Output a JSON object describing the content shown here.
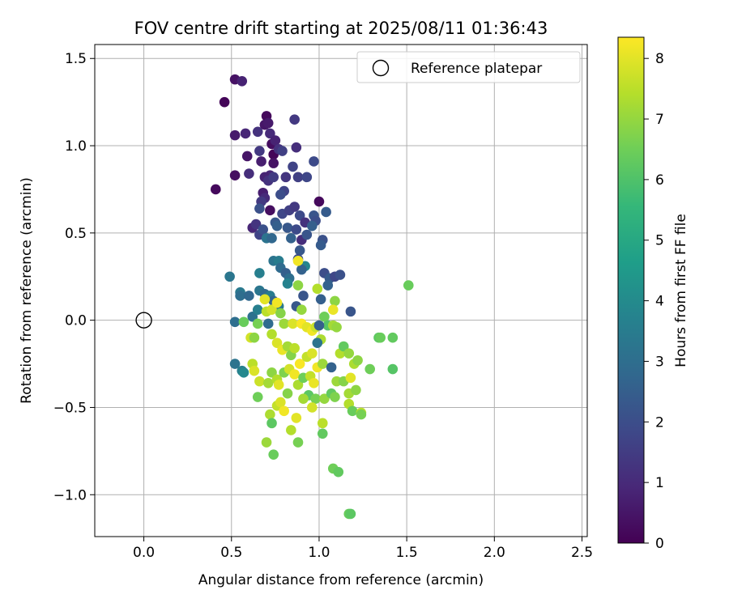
{
  "chart_data": {
    "type": "scatter",
    "title": "FOV centre drift starting at 2025/08/11 01:36:43",
    "xlabel": "Angular distance from reference (arcmin)",
    "ylabel": "Rotation from reference (arcmin)",
    "xlim": [
      -0.28,
      2.53
    ],
    "ylim": [
      -1.24,
      1.58
    ],
    "xticks": [
      0.0,
      0.5,
      1.0,
      1.5,
      2.0,
      2.5
    ],
    "yticks": [
      -1.0,
      -0.5,
      0.0,
      0.5,
      1.0,
      1.5
    ],
    "xtick_labels": [
      "0.0",
      "0.5",
      "1.0",
      "1.5",
      "2.0",
      "2.5"
    ],
    "ytick_labels": [
      "−1.0",
      "−0.5",
      "0.0",
      "0.5",
      "1.0",
      "1.5"
    ],
    "grid": true,
    "legend": {
      "position": "top-right",
      "entries": [
        "Reference platepar"
      ]
    },
    "reference_point": {
      "x": 0.0,
      "y": 0.0,
      "marker": "open-circle",
      "color": "#000000"
    },
    "colorbar": {
      "label": "Hours from first FF file",
      "range": [
        0,
        8.35
      ],
      "ticks": [
        0,
        1,
        2,
        3,
        4,
        5,
        6,
        7,
        8
      ],
      "tick_labels": [
        "0",
        "1",
        "2",
        "3",
        "4",
        "5",
        "6",
        "7",
        "8"
      ],
      "colormap": "viridis"
    },
    "colormap_stops": [
      "#440154",
      "#482878",
      "#3e4989",
      "#31688e",
      "#26828e",
      "#1f9e89",
      "#35b779",
      "#6ece58",
      "#b5de2b",
      "#fde725"
    ],
    "points": [
      {
        "x": 0.46,
        "y": 1.25,
        "h": 0.1
      },
      {
        "x": 0.52,
        "y": 1.38,
        "h": 0.4
      },
      {
        "x": 0.56,
        "y": 1.37,
        "h": 0.8
      },
      {
        "x": 0.41,
        "y": 0.75,
        "h": 0.2
      },
      {
        "x": 0.52,
        "y": 0.83,
        "h": 0.3
      },
      {
        "x": 0.52,
        "y": 1.06,
        "h": 0.6
      },
      {
        "x": 0.58,
        "y": 1.07,
        "h": 0.9
      },
      {
        "x": 0.59,
        "y": 0.94,
        "h": 0.5
      },
      {
        "x": 0.6,
        "y": 0.84,
        "h": 1.1
      },
      {
        "x": 0.65,
        "y": 1.08,
        "h": 1.2
      },
      {
        "x": 0.66,
        "y": 0.97,
        "h": 1.4
      },
      {
        "x": 0.67,
        "y": 0.91,
        "h": 0.7
      },
      {
        "x": 0.69,
        "y": 1.12,
        "h": 0.5
      },
      {
        "x": 0.7,
        "y": 1.17,
        "h": 0.2
      },
      {
        "x": 0.71,
        "y": 1.13,
        "h": 0.6
      },
      {
        "x": 0.72,
        "y": 1.07,
        "h": 1.0
      },
      {
        "x": 0.73,
        "y": 1.01,
        "h": 0.3
      },
      {
        "x": 0.74,
        "y": 0.95,
        "h": 0.1
      },
      {
        "x": 0.75,
        "y": 1.03,
        "h": 0.8
      },
      {
        "x": 0.74,
        "y": 0.9,
        "h": 0.4
      },
      {
        "x": 0.72,
        "y": 0.83,
        "h": 0.9
      },
      {
        "x": 0.69,
        "y": 0.82,
        "h": 0.8
      },
      {
        "x": 0.71,
        "y": 0.8,
        "h": 1.2
      },
      {
        "x": 0.74,
        "y": 0.82,
        "h": 1.5
      },
      {
        "x": 0.77,
        "y": 0.98,
        "h": 1.2
      },
      {
        "x": 0.79,
        "y": 0.97,
        "h": 1.6
      },
      {
        "x": 0.81,
        "y": 0.82,
        "h": 1.3
      },
      {
        "x": 0.86,
        "y": 1.15,
        "h": 1.4
      },
      {
        "x": 0.87,
        "y": 0.99,
        "h": 1.1
      },
      {
        "x": 0.85,
        "y": 0.88,
        "h": 1.7
      },
      {
        "x": 0.88,
        "y": 0.82,
        "h": 1.6
      },
      {
        "x": 0.93,
        "y": 0.82,
        "h": 1.8
      },
      {
        "x": 0.97,
        "y": 0.91,
        "h": 1.9
      },
      {
        "x": 0.8,
        "y": 0.74,
        "h": 1.7
      },
      {
        "x": 0.78,
        "y": 0.72,
        "h": 2.0
      },
      {
        "x": 0.68,
        "y": 0.73,
        "h": 0.7
      },
      {
        "x": 0.69,
        "y": 0.7,
        "h": 1.0
      },
      {
        "x": 0.67,
        "y": 0.68,
        "h": 1.4
      },
      {
        "x": 0.66,
        "y": 0.64,
        "h": 2.1
      },
      {
        "x": 0.72,
        "y": 0.63,
        "h": 0.3
      },
      {
        "x": 0.75,
        "y": 0.56,
        "h": 2.3
      },
      {
        "x": 0.79,
        "y": 0.61,
        "h": 1.8
      },
      {
        "x": 0.83,
        "y": 0.63,
        "h": 1.6
      },
      {
        "x": 0.86,
        "y": 0.65,
        "h": 1.4
      },
      {
        "x": 0.89,
        "y": 0.6,
        "h": 1.9
      },
      {
        "x": 0.92,
        "y": 0.56,
        "h": 1.2
      },
      {
        "x": 0.97,
        "y": 0.6,
        "h": 2.2
      },
      {
        "x": 1.0,
        "y": 0.68,
        "h": 0.2
      },
      {
        "x": 1.04,
        "y": 0.62,
        "h": 2.4
      },
      {
        "x": 0.98,
        "y": 0.57,
        "h": 2.0
      },
      {
        "x": 0.62,
        "y": 0.53,
        "h": 0.9
      },
      {
        "x": 0.64,
        "y": 0.55,
        "h": 1.3
      },
      {
        "x": 0.66,
        "y": 0.49,
        "h": 1.7
      },
      {
        "x": 0.68,
        "y": 0.52,
        "h": 2.1
      },
      {
        "x": 0.7,
        "y": 0.47,
        "h": 3.2
      },
      {
        "x": 0.73,
        "y": 0.47,
        "h": 2.8
      },
      {
        "x": 0.76,
        "y": 0.54,
        "h": 2.5
      },
      {
        "x": 0.82,
        "y": 0.53,
        "h": 2.3
      },
      {
        "x": 0.84,
        "y": 0.47,
        "h": 2.6
      },
      {
        "x": 0.87,
        "y": 0.52,
        "h": 1.9
      },
      {
        "x": 0.9,
        "y": 0.46,
        "h": 1.1
      },
      {
        "x": 0.93,
        "y": 0.49,
        "h": 2.2
      },
      {
        "x": 0.96,
        "y": 0.54,
        "h": 2.5
      },
      {
        "x": 1.02,
        "y": 0.46,
        "h": 2.1
      },
      {
        "x": 1.01,
        "y": 0.43,
        "h": 2.4
      },
      {
        "x": 0.89,
        "y": 0.4,
        "h": 2.3
      },
      {
        "x": 0.88,
        "y": 0.35,
        "h": 2.0
      },
      {
        "x": 0.92,
        "y": 0.31,
        "h": 3.8
      },
      {
        "x": 0.9,
        "y": 0.29,
        "h": 2.6
      },
      {
        "x": 0.74,
        "y": 0.34,
        "h": 3.2
      },
      {
        "x": 0.77,
        "y": 0.34,
        "h": 3.5
      },
      {
        "x": 0.78,
        "y": 0.3,
        "h": 2.9
      },
      {
        "x": 0.81,
        "y": 0.27,
        "h": 2.5
      },
      {
        "x": 0.83,
        "y": 0.24,
        "h": 3.0
      },
      {
        "x": 0.82,
        "y": 0.21,
        "h": 3.7
      },
      {
        "x": 0.66,
        "y": 0.27,
        "h": 3.6
      },
      {
        "x": 0.49,
        "y": 0.25,
        "h": 3.3
      },
      {
        "x": 0.55,
        "y": 0.16,
        "h": 3.4
      },
      {
        "x": 0.55,
        "y": 0.14,
        "h": 3.0
      },
      {
        "x": 0.6,
        "y": 0.14,
        "h": 2.8
      },
      {
        "x": 0.66,
        "y": 0.17,
        "h": 3.3
      },
      {
        "x": 0.69,
        "y": 0.15,
        "h": 2.9
      },
      {
        "x": 0.72,
        "y": 0.14,
        "h": 3.5
      },
      {
        "x": 0.74,
        "y": 0.11,
        "h": 2.7
      },
      {
        "x": 0.77,
        "y": 0.08,
        "h": 3.4
      },
      {
        "x": 0.62,
        "y": 0.02,
        "h": 3.1
      },
      {
        "x": 0.65,
        "y": 0.06,
        "h": 3.6
      },
      {
        "x": 0.88,
        "y": 0.2,
        "h": 6.9
      },
      {
        "x": 0.88,
        "y": 0.34,
        "h": 8.2
      },
      {
        "x": 0.91,
        "y": 0.14,
        "h": 2.2
      },
      {
        "x": 0.99,
        "y": 0.18,
        "h": 7.4
      },
      {
        "x": 1.01,
        "y": 0.12,
        "h": 2.5
      },
      {
        "x": 1.03,
        "y": 0.27,
        "h": 2.0
      },
      {
        "x": 1.06,
        "y": 0.24,
        "h": 2.4
      },
      {
        "x": 1.09,
        "y": 0.25,
        "h": 1.8
      },
      {
        "x": 1.12,
        "y": 0.26,
        "h": 2.1
      },
      {
        "x": 1.05,
        "y": 0.2,
        "h": 2.6
      },
      {
        "x": 1.18,
        "y": 0.05,
        "h": 2.2
      },
      {
        "x": 1.09,
        "y": 0.11,
        "h": 6.9
      },
      {
        "x": 1.08,
        "y": 0.06,
        "h": 8.1
      },
      {
        "x": 1.03,
        "y": 0.02,
        "h": 6.5
      },
      {
        "x": 1.51,
        "y": 0.2,
        "h": 6.4
      },
      {
        "x": 0.52,
        "y": -0.01,
        "h": 3.0
      },
      {
        "x": 0.57,
        "y": -0.01,
        "h": 6.4
      },
      {
        "x": 0.61,
        "y": -0.1,
        "h": 7.8
      },
      {
        "x": 0.63,
        "y": -0.1,
        "h": 6.9
      },
      {
        "x": 0.65,
        "y": -0.02,
        "h": 6.6
      },
      {
        "x": 0.69,
        "y": 0.12,
        "h": 8.0
      },
      {
        "x": 0.7,
        "y": 0.05,
        "h": 7.5
      },
      {
        "x": 0.73,
        "y": 0.06,
        "h": 7.8
      },
      {
        "x": 0.76,
        "y": 0.1,
        "h": 8.2
      },
      {
        "x": 0.78,
        "y": 0.04,
        "h": 6.8
      },
      {
        "x": 0.8,
        "y": -0.02,
        "h": 7.1
      },
      {
        "x": 0.85,
        "y": -0.02,
        "h": 7.9
      },
      {
        "x": 0.9,
        "y": -0.02,
        "h": 8.3
      },
      {
        "x": 0.93,
        "y": -0.04,
        "h": 8.0
      },
      {
        "x": 0.96,
        "y": -0.06,
        "h": 8.2
      },
      {
        "x": 0.98,
        "y": -0.04,
        "h": 7.7
      },
      {
        "x": 1.01,
        "y": -0.11,
        "h": 7.3
      },
      {
        "x": 1.05,
        "y": -0.03,
        "h": 6.1
      },
      {
        "x": 1.08,
        "y": -0.03,
        "h": 7.2
      },
      {
        "x": 1.1,
        "y": -0.04,
        "h": 7.0
      },
      {
        "x": 1.0,
        "y": -0.03,
        "h": 2.5
      },
      {
        "x": 0.87,
        "y": 0.08,
        "h": 2.3
      },
      {
        "x": 0.9,
        "y": 0.06,
        "h": 7.0
      },
      {
        "x": 0.73,
        "y": -0.08,
        "h": 7.4
      },
      {
        "x": 0.76,
        "y": -0.13,
        "h": 7.9
      },
      {
        "x": 0.79,
        "y": -0.17,
        "h": 8.1
      },
      {
        "x": 0.82,
        "y": -0.15,
        "h": 7.2
      },
      {
        "x": 0.84,
        "y": -0.2,
        "h": 6.8
      },
      {
        "x": 0.86,
        "y": -0.16,
        "h": 7.5
      },
      {
        "x": 0.89,
        "y": -0.25,
        "h": 8.3
      },
      {
        "x": 0.93,
        "y": -0.21,
        "h": 7.6
      },
      {
        "x": 0.96,
        "y": -0.19,
        "h": 7.9
      },
      {
        "x": 0.99,
        "y": -0.27,
        "h": 8.2
      },
      {
        "x": 1.02,
        "y": -0.25,
        "h": 7.1
      },
      {
        "x": 1.07,
        "y": -0.27,
        "h": 2.6
      },
      {
        "x": 1.12,
        "y": -0.19,
        "h": 7.4
      },
      {
        "x": 1.14,
        "y": -0.15,
        "h": 6.3
      },
      {
        "x": 1.17,
        "y": -0.19,
        "h": 7.0
      },
      {
        "x": 1.2,
        "y": -0.25,
        "h": 7.3
      },
      {
        "x": 1.22,
        "y": -0.23,
        "h": 6.9
      },
      {
        "x": 1.29,
        "y": -0.28,
        "h": 6.5
      },
      {
        "x": 1.34,
        "y": -0.1,
        "h": 6.2
      },
      {
        "x": 1.35,
        "y": -0.1,
        "h": 6.4
      },
      {
        "x": 1.42,
        "y": -0.1,
        "h": 6.3
      },
      {
        "x": 1.42,
        "y": -0.28,
        "h": 6.1
      },
      {
        "x": 0.62,
        "y": -0.25,
        "h": 7.5
      },
      {
        "x": 0.63,
        "y": -0.29,
        "h": 7.9
      },
      {
        "x": 0.66,
        "y": -0.35,
        "h": 7.7
      },
      {
        "x": 0.71,
        "y": -0.36,
        "h": 7.2
      },
      {
        "x": 0.73,
        "y": -0.3,
        "h": 6.9
      },
      {
        "x": 0.76,
        "y": -0.34,
        "h": 7.4
      },
      {
        "x": 0.77,
        "y": -0.37,
        "h": 8.0
      },
      {
        "x": 0.8,
        "y": -0.3,
        "h": 6.7
      },
      {
        "x": 0.83,
        "y": -0.28,
        "h": 7.8
      },
      {
        "x": 0.86,
        "y": -0.31,
        "h": 8.2
      },
      {
        "x": 0.88,
        "y": -0.37,
        "h": 7.3
      },
      {
        "x": 0.91,
        "y": -0.33,
        "h": 6.5
      },
      {
        "x": 0.95,
        "y": -0.32,
        "h": 7.6
      },
      {
        "x": 0.97,
        "y": -0.36,
        "h": 8.1
      },
      {
        "x": 0.94,
        "y": -0.43,
        "h": 6.2
      },
      {
        "x": 0.98,
        "y": -0.45,
        "h": 6.6
      },
      {
        "x": 1.03,
        "y": -0.45,
        "h": 7.0
      },
      {
        "x": 1.07,
        "y": -0.42,
        "h": 6.3
      },
      {
        "x": 1.09,
        "y": -0.44,
        "h": 6.7
      },
      {
        "x": 1.1,
        "y": -0.35,
        "h": 7.1
      },
      {
        "x": 1.14,
        "y": -0.35,
        "h": 6.8
      },
      {
        "x": 1.17,
        "y": -0.42,
        "h": 7.2
      },
      {
        "x": 1.18,
        "y": -0.33,
        "h": 8.0
      },
      {
        "x": 1.21,
        "y": -0.4,
        "h": 6.9
      },
      {
        "x": 1.17,
        "y": -0.48,
        "h": 7.4
      },
      {
        "x": 1.19,
        "y": -0.52,
        "h": 6.4
      },
      {
        "x": 1.24,
        "y": -0.53,
        "h": 7.5
      },
      {
        "x": 1.24,
        "y": -0.54,
        "h": 6.6
      },
      {
        "x": 0.65,
        "y": -0.44,
        "h": 6.5
      },
      {
        "x": 0.7,
        "y": -0.7,
        "h": 7.1
      },
      {
        "x": 0.72,
        "y": -0.54,
        "h": 7.3
      },
      {
        "x": 0.73,
        "y": -0.59,
        "h": 6.2
      },
      {
        "x": 0.76,
        "y": -0.49,
        "h": 7.6
      },
      {
        "x": 0.78,
        "y": -0.47,
        "h": 7.9
      },
      {
        "x": 0.8,
        "y": -0.52,
        "h": 8.2
      },
      {
        "x": 0.82,
        "y": -0.42,
        "h": 6.8
      },
      {
        "x": 0.84,
        "y": -0.63,
        "h": 7.4
      },
      {
        "x": 0.87,
        "y": -0.56,
        "h": 8.0
      },
      {
        "x": 0.88,
        "y": -0.7,
        "h": 6.6
      },
      {
        "x": 0.91,
        "y": -0.45,
        "h": 7.2
      },
      {
        "x": 0.96,
        "y": -0.5,
        "h": 7.8
      },
      {
        "x": 1.02,
        "y": -0.59,
        "h": 7.5
      },
      {
        "x": 1.02,
        "y": -0.65,
        "h": 6.3
      },
      {
        "x": 0.74,
        "y": -0.77,
        "h": 6.4
      },
      {
        "x": 1.08,
        "y": -0.85,
        "h": 6.5
      },
      {
        "x": 1.11,
        "y": -0.87,
        "h": 6.3
      },
      {
        "x": 1.17,
        "y": -1.11,
        "h": 6.4
      },
      {
        "x": 1.18,
        "y": -1.11,
        "h": 6.2
      },
      {
        "x": 0.52,
        "y": -0.25,
        "h": 3.2
      },
      {
        "x": 0.56,
        "y": -0.29,
        "h": 3.6
      },
      {
        "x": 0.57,
        "y": -0.3,
        "h": 3.9
      },
      {
        "x": 0.71,
        "y": -0.02,
        "h": 2.9
      },
      {
        "x": 0.99,
        "y": -0.13,
        "h": 3.2
      }
    ]
  }
}
